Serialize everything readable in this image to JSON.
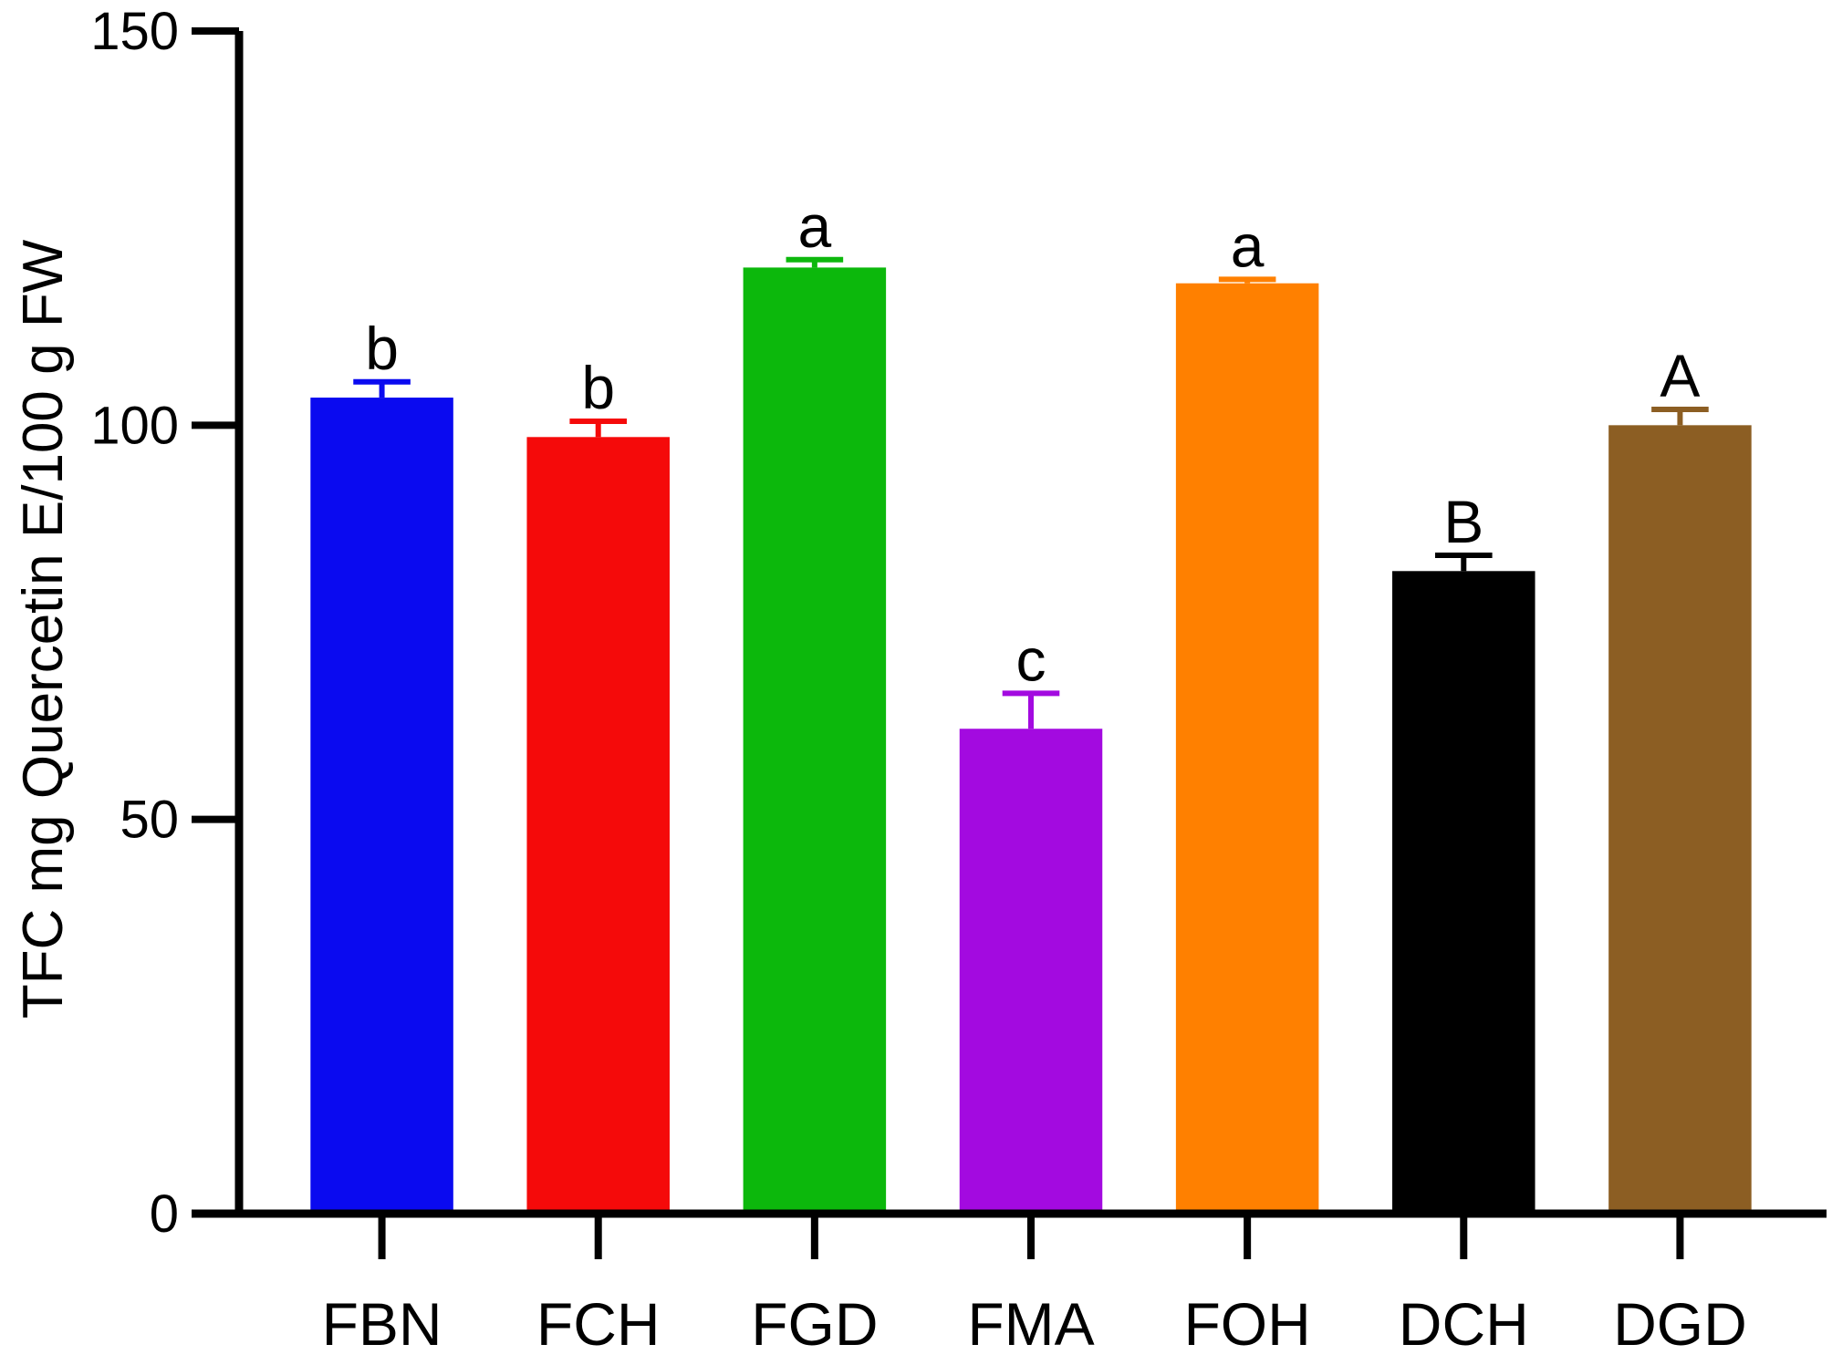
{
  "chart_data": {
    "type": "bar",
    "title": "",
    "xlabel": "",
    "ylabel": "TFC mg Quercetin E/100 g FW",
    "ylim": [
      0,
      150
    ],
    "yticks": [
      0,
      50,
      100,
      150
    ],
    "categories": [
      "FBN",
      "FCH",
      "FGD",
      "FMA",
      "FOH",
      "DCH",
      "DGD"
    ],
    "values": [
      103.5,
      98.5,
      120.0,
      61.5,
      118.0,
      81.5,
      100.0
    ],
    "errors": [
      2.0,
      2.0,
      1.0,
      4.5,
      0.5,
      2.0,
      2.0
    ],
    "significance": [
      "b",
      "b",
      "a",
      "c",
      "a",
      "B",
      "A"
    ],
    "colors": [
      "#0a0af0",
      "#f50a0a",
      "#0cb80c",
      "#a30ae0",
      "#ff8000",
      "#000000",
      "#8c5e23"
    ],
    "grid": false,
    "legend": "none"
  }
}
